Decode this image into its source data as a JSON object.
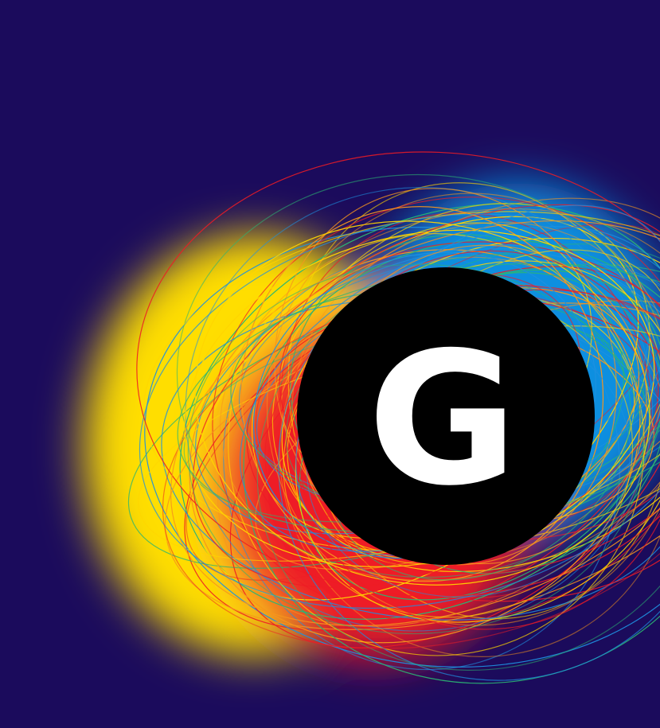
{
  "logo": {
    "letter": "G"
  }
}
